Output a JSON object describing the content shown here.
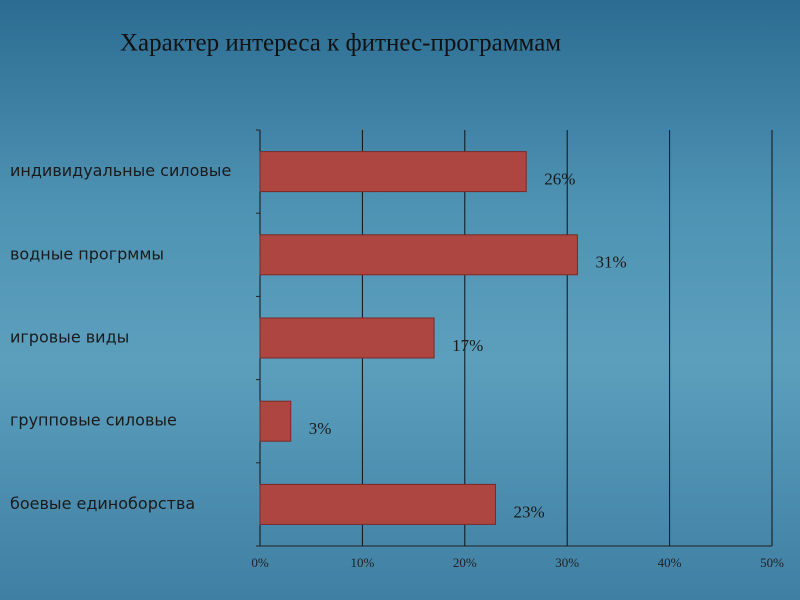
{
  "chart_data": {
    "type": "bar",
    "orientation": "horizontal",
    "title": "Характер интереса к фитнес-программам",
    "categories": [
      "индивидуальные силовые",
      "водные прогрммы",
      "игровые виды",
      "групповые силовые",
      "боевые единоборства"
    ],
    "values": [
      26,
      31,
      17,
      3,
      23
    ],
    "value_labels": [
      "26%",
      "31%",
      "17%",
      "3%",
      "23%"
    ],
    "color": "#ad4540",
    "xlim": [
      0,
      50
    ],
    "xticks": [
      {
        "value": 0,
        "label": "0%"
      },
      {
        "value": 10,
        "label": "10%"
      },
      {
        "value": 20,
        "label": "20%"
      },
      {
        "value": 30,
        "label": "30%"
      },
      {
        "value": 40,
        "label": "40%"
      },
      {
        "value": 50,
        "label": "50%"
      }
    ],
    "grid": true
  }
}
